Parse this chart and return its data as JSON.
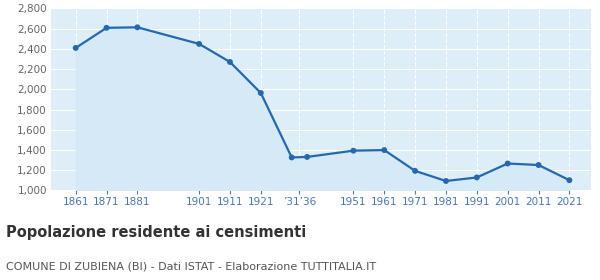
{
  "years": [
    1861,
    1871,
    1881,
    1901,
    1911,
    1921,
    1931,
    1936,
    1951,
    1961,
    1971,
    1981,
    1991,
    2001,
    2011,
    2021
  ],
  "population": [
    2409,
    2608,
    2613,
    2449,
    2270,
    1963,
    1326,
    1331,
    1393,
    1399,
    1193,
    1093,
    1128,
    1266,
    1251,
    1101
  ],
  "ylim": [
    1000,
    2800
  ],
  "yticks": [
    1000,
    1200,
    1400,
    1600,
    1800,
    2000,
    2200,
    2400,
    2600,
    2800
  ],
  "line_color": "#2268b2",
  "fill_color": "#d6e9f7",
  "marker_color": "#2268b2",
  "plot_bg_color": "#ddeef8",
  "fig_bg_color": "#ffffff",
  "grid_color": "#ffffff",
  "tick_label_color": "#4477bb",
  "ytick_color": "#666666",
  "title": "Popolazione residente ai censimenti",
  "subtitle": "COMUNE DI ZUBIENA (BI) - Dati ISTAT - Elaborazione TUTTITALIA.IT",
  "title_fontsize": 10.5,
  "subtitle_fontsize": 8.0,
  "tick_label_positions": [
    1861,
    1871,
    1881,
    1901,
    1911,
    1921,
    1933.5,
    1951,
    1961,
    1971,
    1981,
    1991,
    2001,
    2011,
    2021
  ],
  "tick_label_texts": [
    "1861",
    "1871",
    "1881",
    "1901",
    "1911",
    "1921",
    "’31’36",
    "1951",
    "1961",
    "1971",
    "1981",
    "1991",
    "2001",
    "2011",
    "2021"
  ],
  "xlim_left": 1853,
  "xlim_right": 2028
}
